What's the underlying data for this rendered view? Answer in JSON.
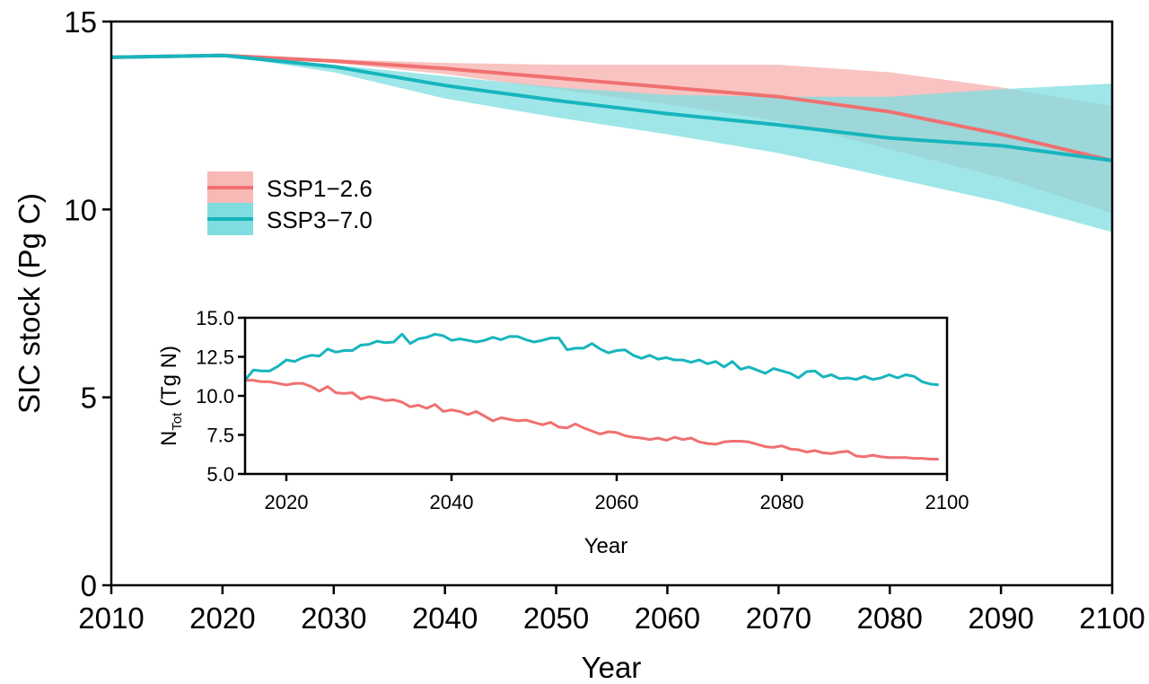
{
  "colors": {
    "ssp126": "#f07070",
    "ssp126_band": "#f7b8b6",
    "ssp370": "#17b5bd",
    "ssp370_band": "#7fdde0"
  },
  "chart_data": [
    {
      "type": "line",
      "xlabel": "Year",
      "ylabel": "SIC stock (Pg C)",
      "xlim": [
        2010,
        2100
      ],
      "ylim": [
        0,
        15
      ],
      "x_ticks": [
        "2010",
        "2020",
        "2030",
        "2040",
        "2050",
        "2060",
        "2070",
        "2080",
        "2090",
        "2100"
      ],
      "y_ticks": [
        "0",
        "5",
        "10",
        "15"
      ],
      "legend": {
        "placement": "center-left",
        "entries": [
          "SSP1−2.6",
          "SSP3−7.0"
        ]
      },
      "series": [
        {
          "name": "SSP1−2.6",
          "x": [
            2010,
            2020,
            2030,
            2040,
            2050,
            2060,
            2070,
            2080,
            2090,
            2100
          ],
          "values": [
            14.05,
            14.1,
            13.95,
            13.75,
            13.5,
            13.25,
            13.0,
            12.6,
            12.0,
            11.3
          ],
          "upper": [
            14.05,
            14.1,
            14.0,
            13.9,
            13.85,
            13.85,
            13.85,
            13.65,
            13.25,
            12.75
          ],
          "lower": [
            14.05,
            14.1,
            13.9,
            13.6,
            13.2,
            12.8,
            12.35,
            11.6,
            10.85,
            9.9
          ]
        },
        {
          "name": "SSP3−7.0",
          "x": [
            2010,
            2020,
            2030,
            2040,
            2050,
            2060,
            2070,
            2080,
            2090,
            2100
          ],
          "values": [
            14.05,
            14.1,
            13.8,
            13.3,
            12.9,
            12.55,
            12.25,
            11.9,
            11.7,
            11.3
          ],
          "upper": [
            14.05,
            14.1,
            13.85,
            13.55,
            13.25,
            13.05,
            13.0,
            13.0,
            13.2,
            13.35
          ],
          "lower": [
            14.05,
            14.1,
            13.65,
            12.95,
            12.45,
            12.0,
            11.5,
            10.85,
            10.2,
            9.4
          ]
        }
      ]
    },
    {
      "type": "line",
      "xlabel": "Year",
      "ylabel_main": "N",
      "ylabel_sub": "Tot",
      "ylabel_unit": "(Tg N)",
      "xlim": [
        2015,
        2100
      ],
      "ylim": [
        5.0,
        15.0
      ],
      "x_ticks": [
        "2020",
        "2040",
        "2060",
        "2080",
        "2100"
      ],
      "y_ticks": [
        "5.0",
        "7.5",
        "10.0",
        "12.5",
        "15.0"
      ],
      "series": [
        {
          "name": "SSP1−2.6",
          "x": [
            2015,
            2016,
            2017,
            2018,
            2019,
            2020,
            2021,
            2022,
            2023,
            2024,
            2025,
            2026,
            2027,
            2028,
            2029,
            2030,
            2031,
            2032,
            2033,
            2034,
            2035,
            2036,
            2037,
            2038,
            2039,
            2040,
            2041,
            2042,
            2043,
            2044,
            2045,
            2046,
            2047,
            2048,
            2049,
            2050,
            2051,
            2052,
            2053,
            2054,
            2055,
            2056,
            2057,
            2058,
            2059,
            2060,
            2061,
            2062,
            2063,
            2064,
            2065,
            2066,
            2067,
            2068,
            2069,
            2070,
            2071,
            2072,
            2073,
            2074,
            2075,
            2076,
            2077,
            2078,
            2079,
            2080,
            2081,
            2082,
            2083,
            2084,
            2085,
            2086,
            2087,
            2088,
            2089,
            2090,
            2091,
            2092,
            2093,
            2094,
            2095,
            2096,
            2097,
            2098,
            2099
          ],
          "values": [
            11.0,
            11.0,
            10.9,
            10.9,
            10.8,
            10.7,
            10.8,
            10.8,
            10.6,
            10.3,
            10.6,
            10.2,
            10.15,
            10.2,
            9.8,
            9.95,
            9.85,
            9.7,
            9.75,
            9.6,
            9.3,
            9.4,
            9.2,
            9.45,
            9.0,
            9.1,
            9.0,
            8.8,
            9.0,
            8.7,
            8.4,
            8.6,
            8.5,
            8.4,
            8.45,
            8.3,
            8.15,
            8.3,
            8.0,
            7.95,
            8.2,
            7.95,
            7.75,
            7.55,
            7.7,
            7.65,
            7.45,
            7.35,
            7.3,
            7.2,
            7.3,
            7.15,
            7.35,
            7.2,
            7.3,
            7.05,
            6.95,
            6.9,
            7.05,
            7.1,
            7.1,
            7.05,
            6.9,
            6.75,
            6.7,
            6.8,
            6.6,
            6.55,
            6.4,
            6.5,
            6.35,
            6.3,
            6.4,
            6.45,
            6.15,
            6.1,
            6.2,
            6.1,
            6.05,
            6.05,
            6.05,
            6.0,
            6.0,
            5.95,
            5.95
          ]
        },
        {
          "name": "SSP3−7.0",
          "x": [
            2015,
            2016,
            2017,
            2018,
            2019,
            2020,
            2021,
            2022,
            2023,
            2024,
            2025,
            2026,
            2027,
            2028,
            2029,
            2030,
            2031,
            2032,
            2033,
            2034,
            2035,
            2036,
            2037,
            2038,
            2039,
            2040,
            2041,
            2042,
            2043,
            2044,
            2045,
            2046,
            2047,
            2048,
            2049,
            2050,
            2051,
            2052,
            2053,
            2054,
            2055,
            2056,
            2057,
            2058,
            2059,
            2060,
            2061,
            2062,
            2063,
            2064,
            2065,
            2066,
            2067,
            2068,
            2069,
            2070,
            2071,
            2072,
            2073,
            2074,
            2075,
            2076,
            2077,
            2078,
            2079,
            2080,
            2081,
            2082,
            2083,
            2084,
            2085,
            2086,
            2087,
            2088,
            2089,
            2090,
            2091,
            2092,
            2093,
            2094,
            2095,
            2096,
            2097,
            2098,
            2099
          ],
          "values": [
            11.0,
            11.65,
            11.6,
            11.6,
            11.9,
            12.3,
            12.2,
            12.45,
            12.6,
            12.55,
            13.0,
            12.8,
            12.9,
            12.9,
            13.25,
            13.3,
            13.5,
            13.4,
            13.45,
            13.95,
            13.35,
            13.65,
            13.75,
            13.95,
            13.85,
            13.55,
            13.65,
            13.55,
            13.45,
            13.55,
            13.75,
            13.6,
            13.8,
            13.8,
            13.6,
            13.45,
            13.55,
            13.7,
            13.7,
            12.95,
            13.05,
            13.05,
            13.35,
            13.0,
            12.75,
            12.9,
            12.95,
            12.6,
            12.4,
            12.6,
            12.35,
            12.45,
            12.3,
            12.3,
            12.15,
            12.3,
            12.05,
            12.2,
            11.85,
            12.2,
            11.7,
            11.85,
            11.65,
            11.45,
            11.75,
            11.6,
            11.45,
            11.15,
            11.55,
            11.6,
            11.2,
            11.35,
            11.1,
            11.15,
            11.05,
            11.25,
            11.05,
            11.15,
            11.35,
            11.15,
            11.35,
            11.25,
            10.9,
            10.75,
            10.7
          ]
        }
      ]
    }
  ]
}
